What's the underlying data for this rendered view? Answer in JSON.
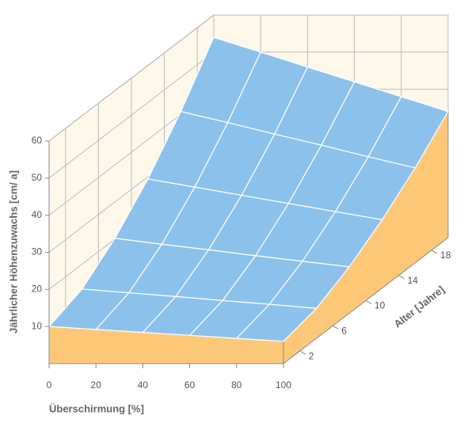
{
  "chart_data": {
    "type": "surface3d",
    "x_label": "Überschirmung [%]",
    "y_label": "Alter [Jahre]",
    "z_label": "Jährlicher Höhenzuwachs [cm/ a]",
    "x": [
      0,
      20,
      40,
      60,
      80,
      100
    ],
    "y": [
      0,
      4,
      8,
      12,
      16,
      20
    ],
    "z": [
      [
        10,
        9.2,
        8.4,
        7.6,
        6.8,
        6
      ],
      [
        13.3,
        12.3,
        11.3,
        10.2,
        9.2,
        8.1
      ],
      [
        20.2,
        18.6,
        17.1,
        15.5,
        14,
        12.5
      ],
      [
        29.4,
        27.2,
        25,
        22.8,
        20.6,
        18.4
      ],
      [
        40.8,
        37.8,
        34.7,
        31.7,
        28.6,
        25.6
      ],
      [
        54,
        50,
        46,
        42,
        38,
        34
      ]
    ],
    "xlim": [
      0,
      100
    ],
    "ylim": [
      0,
      20
    ],
    "zlim": [
      0,
      60
    ],
    "xticks": [
      0,
      20,
      40,
      60,
      80,
      100
    ],
    "yticks": [
      2,
      6,
      10,
      14,
      18
    ],
    "zticks": [
      10,
      20,
      30,
      40,
      50,
      60
    ],
    "surface_color": "#8cc1ec",
    "side_color": "#fcc878",
    "wall_color": "#fdf8ea",
    "grid": true
  }
}
